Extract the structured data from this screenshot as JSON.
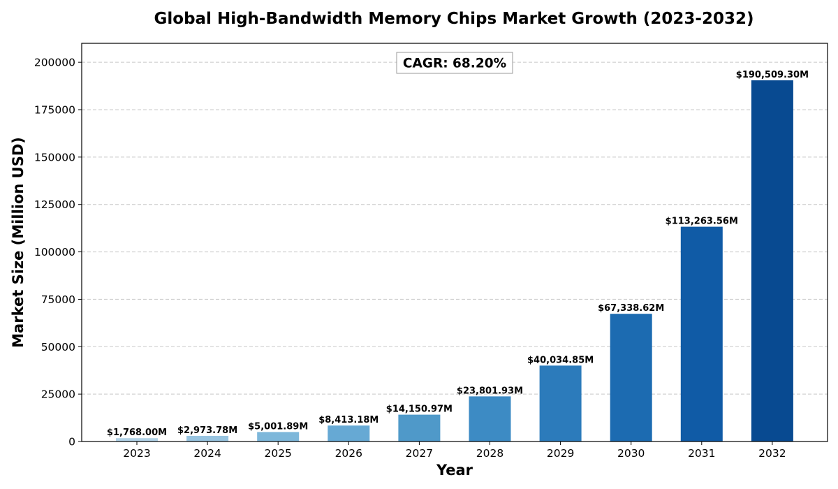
{
  "chart_data": {
    "type": "bar",
    "title": "Global High-Bandwidth Memory Chips Market Growth (2023-2032)",
    "xlabel": "Year",
    "ylabel": "Market Size (Million USD)",
    "categories": [
      "2023",
      "2024",
      "2025",
      "2026",
      "2027",
      "2028",
      "2029",
      "2030",
      "2031",
      "2032"
    ],
    "values": [
      1768.0,
      2973.78,
      5001.89,
      8413.18,
      14150.97,
      23801.93,
      40034.85,
      67338.62,
      113263.56,
      190509.3
    ],
    "data_labels": [
      "$1,768.00M",
      "$2,973.78M",
      "$5,001.89M",
      "$8,413.18M",
      "$14,150.97M",
      "$23,801.93M",
      "$40,034.85M",
      "$67,338.62M",
      "$113,263.56M",
      "$190,509.30M"
    ],
    "colors": [
      "#b2d3e8",
      "#98c4e0",
      "#7db7da",
      "#66a9d4",
      "#4f99c9",
      "#3d8bc4",
      "#2c7bbb",
      "#1c6bb1",
      "#105ba6",
      "#084a91"
    ],
    "ylim": [
      0,
      210000
    ],
    "yticks": [
      0,
      25000,
      50000,
      75000,
      100000,
      125000,
      150000,
      175000,
      200000
    ],
    "ytick_labels": [
      "0",
      "25000",
      "50000",
      "75000",
      "100000",
      "125000",
      "150000",
      "175000",
      "200000"
    ],
    "grid": "y-dashed",
    "annotation": "CAGR: 68.20%"
  }
}
